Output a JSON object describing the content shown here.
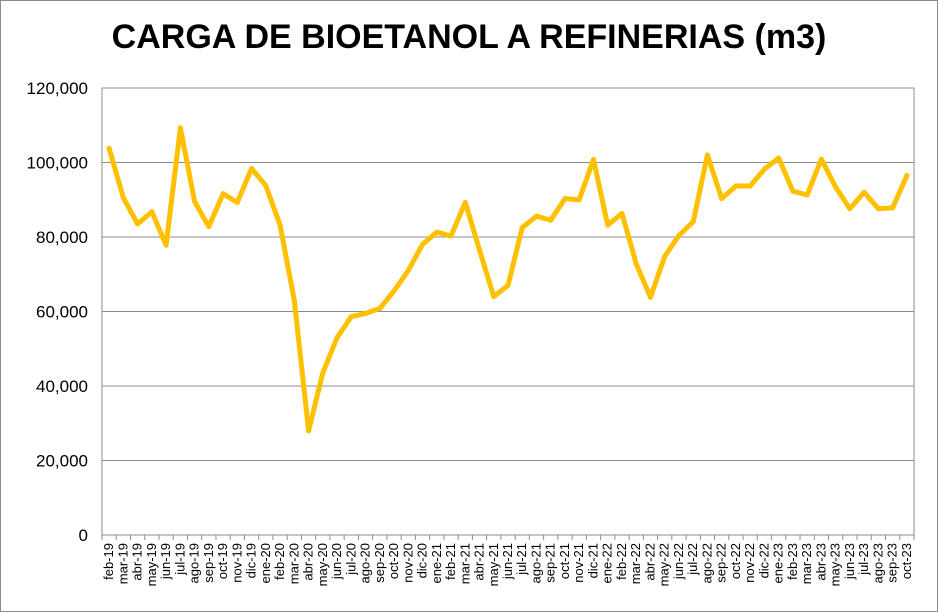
{
  "chart_data": {
    "type": "line",
    "title": "CARGA DE BIOETANOL A REFINERIAS (m3)",
    "xlabel": "",
    "ylabel": "",
    "ylim": [
      0,
      120000
    ],
    "yticks": [
      0,
      20000,
      40000,
      60000,
      80000,
      100000,
      120000
    ],
    "ytick_labels": [
      "0",
      "20,000",
      "40,000",
      "60,000",
      "80,000",
      "100,000",
      "120,000"
    ],
    "grid": true,
    "legend": "none",
    "line_color": "#FFC000",
    "grid_color": "#8c8c8c",
    "categories": [
      "feb-19",
      "mar-19",
      "abr-19",
      "may-19",
      "jun-19",
      "jul-19",
      "ago-19",
      "sep-19",
      "oct-19",
      "nov-19",
      "dic-19",
      "ene-20",
      "feb-20",
      "mar-20",
      "abr-20",
      "may-20",
      "jun-20",
      "jul-20",
      "ago-20",
      "sep-20",
      "oct-20",
      "nov-20",
      "dic-20",
      "ene-21",
      "feb-21",
      "mar-21",
      "abr-21",
      "may-21",
      "jun-21",
      "jul-21",
      "ago-21",
      "sep-21",
      "oct-21",
      "nov-21",
      "dic-21",
      "ene-22",
      "feb-22",
      "mar-22",
      "abr-22",
      "may-22",
      "jun-22",
      "jul-22",
      "ago-22",
      "sep-22",
      "oct-22",
      "nov-22",
      "dic-22",
      "ene-23",
      "feb-23",
      "mar-23",
      "abr-23",
      "may-23",
      "jun-23",
      "jul-23",
      "ago-23",
      "sep-23",
      "oct-23"
    ],
    "series": [
      {
        "values": [
          103800,
          90500,
          83500,
          86800,
          77800,
          109300,
          89500,
          82800,
          91600,
          89300,
          98400,
          93800,
          83200,
          63000,
          28000,
          43500,
          53000,
          58600,
          59500,
          60800,
          65500,
          71000,
          78000,
          81300,
          80300,
          89300,
          76500,
          64000,
          67000,
          82500,
          85600,
          84500,
          90300,
          90000,
          100800,
          83200,
          86300,
          72800,
          63800,
          74800,
          80400,
          84100,
          102000,
          90300,
          93700,
          93700,
          98200,
          101200,
          92300,
          91300,
          100900,
          93400,
          87600,
          92000,
          87600,
          87800,
          96500
        ]
      }
    ]
  }
}
